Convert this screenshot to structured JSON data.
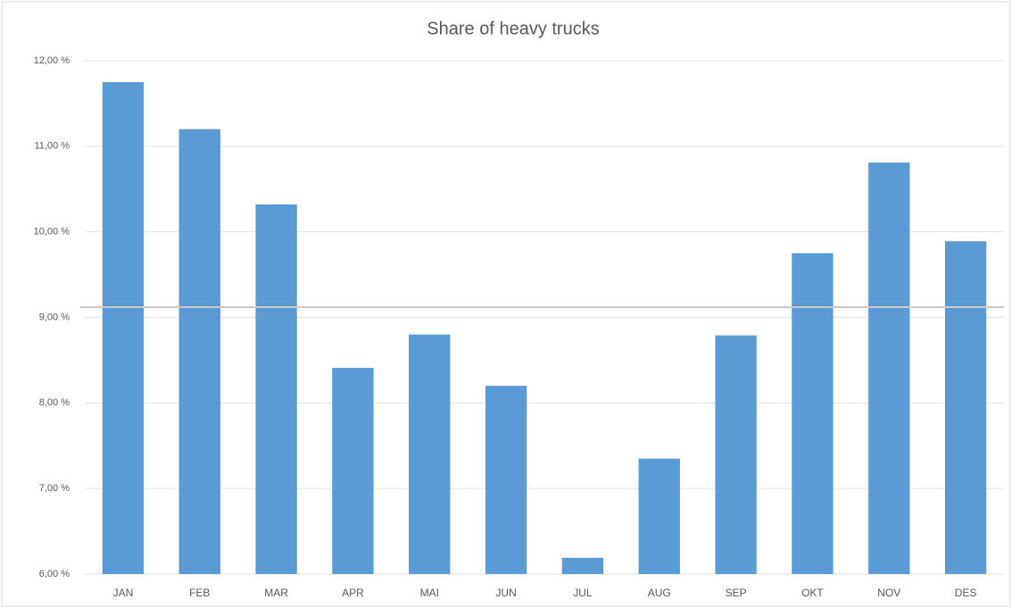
{
  "chart_data": {
    "type": "bar",
    "title": "Share of heavy trucks",
    "categories": [
      "JAN",
      "FEB",
      "MAR",
      "APR",
      "MAI",
      "JUN",
      "JUL",
      "AUG",
      "SEP",
      "OKT",
      "NOV",
      "DES"
    ],
    "values": [
      11.75,
      11.2,
      10.32,
      8.41,
      8.8,
      8.2,
      6.19,
      7.35,
      8.79,
      9.75,
      10.81,
      9.89
    ],
    "color": "#5b9bd5",
    "reference_line": {
      "value": 9.12,
      "color": "#c9c9c9"
    },
    "ylim": [
      6,
      12
    ],
    "yticks": [
      {
        "value": 6,
        "label": "6,00 %"
      },
      {
        "value": 7,
        "label": "7,00 %"
      },
      {
        "value": 8,
        "label": "8,00 %"
      },
      {
        "value": 9,
        "label": "9,00 %"
      },
      {
        "value": 10,
        "label": "10,00 %"
      },
      {
        "value": 11,
        "label": "11,00 %"
      },
      {
        "value": 12,
        "label": "12,00 %"
      }
    ],
    "grid": true
  }
}
